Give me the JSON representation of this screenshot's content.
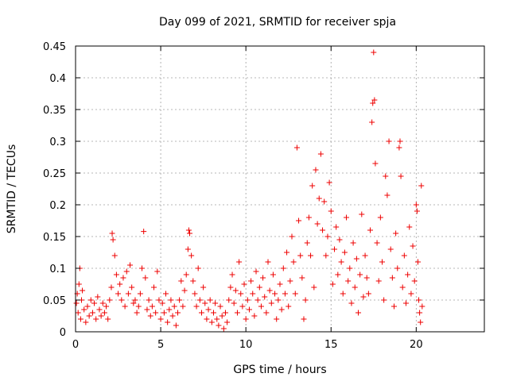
{
  "chart_data": {
    "type": "scatter",
    "title": "Day 099 of 2021, SRMTID for receiver spja",
    "xlabel": "GPS time / hours",
    "ylabel": "SRMTID / TECUs",
    "xlim": [
      0,
      24
    ],
    "ylim": [
      0,
      0.45
    ],
    "x_ticks": [
      0,
      5,
      10,
      15,
      20
    ],
    "y_ticks": [
      0,
      0.05,
      0.1,
      0.15,
      0.2,
      0.25,
      0.3,
      0.35,
      0.4,
      0.45
    ],
    "x_tick_labels": [
      "0",
      "5",
      "10",
      "15",
      "20"
    ],
    "y_tick_labels": [
      "0",
      "0.05",
      "0.1",
      "0.15",
      "0.2",
      "0.25",
      "0.3",
      "0.35",
      "0.4",
      "0.45"
    ],
    "grid": true,
    "marker": "+",
    "marker_color": "#ee0000",
    "series": [
      {
        "points": [
          [
            0.05,
            0.045
          ],
          [
            0.1,
            0.06
          ],
          [
            0.15,
            0.03
          ],
          [
            0.2,
            0.075
          ],
          [
            0.25,
            0.1
          ],
          [
            0.3,
            0.02
          ],
          [
            0.35,
            0.05
          ],
          [
            0.4,
            0.065
          ],
          [
            0.5,
            0.035
          ],
          [
            0.6,
            0.015
          ],
          [
            0.7,
            0.04
          ],
          [
            0.8,
            0.025
          ],
          [
            0.9,
            0.05
          ],
          [
            1.0,
            0.03
          ],
          [
            1.1,
            0.045
          ],
          [
            1.2,
            0.02
          ],
          [
            1.3,
            0.055
          ],
          [
            1.4,
            0.035
          ],
          [
            1.5,
            0.025
          ],
          [
            1.6,
            0.045
          ],
          [
            1.7,
            0.03
          ],
          [
            1.8,
            0.04
          ],
          [
            1.9,
            0.02
          ],
          [
            2.0,
            0.05
          ],
          [
            2.1,
            0.07
          ],
          [
            2.15,
            0.155
          ],
          [
            2.2,
            0.145
          ],
          [
            2.3,
            0.12
          ],
          [
            2.4,
            0.09
          ],
          [
            2.5,
            0.06
          ],
          [
            2.6,
            0.075
          ],
          [
            2.7,
            0.05
          ],
          [
            2.8,
            0.085
          ],
          [
            2.9,
            0.04
          ],
          [
            3.0,
            0.095
          ],
          [
            3.1,
            0.06
          ],
          [
            3.2,
            0.105
          ],
          [
            3.3,
            0.07
          ],
          [
            3.4,
            0.045
          ],
          [
            3.5,
            0.05
          ],
          [
            3.6,
            0.03
          ],
          [
            3.7,
            0.04
          ],
          [
            3.8,
            0.06
          ],
          [
            3.9,
            0.1
          ],
          [
            4.0,
            0.158
          ],
          [
            4.1,
            0.085
          ],
          [
            4.2,
            0.035
          ],
          [
            4.3,
            0.05
          ],
          [
            4.4,
            0.025
          ],
          [
            4.5,
            0.04
          ],
          [
            4.6,
            0.07
          ],
          [
            4.7,
            0.03
          ],
          [
            4.8,
            0.095
          ],
          [
            4.9,
            0.05
          ],
          [
            5.0,
            0.02
          ],
          [
            5.1,
            0.045
          ],
          [
            5.2,
            0.03
          ],
          [
            5.3,
            0.06
          ],
          [
            5.4,
            0.015
          ],
          [
            5.5,
            0.035
          ],
          [
            5.6,
            0.05
          ],
          [
            5.7,
            0.025
          ],
          [
            5.8,
            0.04
          ],
          [
            5.9,
            0.01
          ],
          [
            6.0,
            0.03
          ],
          [
            6.1,
            0.05
          ],
          [
            6.2,
            0.08
          ],
          [
            6.3,
            0.04
          ],
          [
            6.4,
            0.065
          ],
          [
            6.5,
            0.09
          ],
          [
            6.6,
            0.13
          ],
          [
            6.65,
            0.16
          ],
          [
            6.7,
            0.155
          ],
          [
            6.8,
            0.12
          ],
          [
            6.9,
            0.08
          ],
          [
            7.0,
            0.06
          ],
          [
            7.1,
            0.04
          ],
          [
            7.2,
            0.1
          ],
          [
            7.3,
            0.05
          ],
          [
            7.4,
            0.03
          ],
          [
            7.5,
            0.07
          ],
          [
            7.6,
            0.045
          ],
          [
            7.7,
            0.02
          ],
          [
            7.8,
            0.035
          ],
          [
            7.9,
            0.05
          ],
          [
            8.0,
            0.015
          ],
          [
            8.1,
            0.03
          ],
          [
            8.2,
            0.045
          ],
          [
            8.3,
            0.02
          ],
          [
            8.4,
            0.01
          ],
          [
            8.5,
            0.04
          ],
          [
            8.6,
            0.025
          ],
          [
            8.7,
            0.005
          ],
          [
            8.8,
            0.03
          ],
          [
            8.9,
            0.015
          ],
          [
            9.0,
            0.05
          ],
          [
            9.1,
            0.07
          ],
          [
            9.2,
            0.09
          ],
          [
            9.3,
            0.045
          ],
          [
            9.4,
            0.065
          ],
          [
            9.5,
            0.03
          ],
          [
            9.6,
            0.11
          ],
          [
            9.7,
            0.06
          ],
          [
            9.8,
            0.04
          ],
          [
            9.9,
            0.075
          ],
          [
            10.0,
            0.02
          ],
          [
            10.1,
            0.05
          ],
          [
            10.2,
            0.035
          ],
          [
            10.3,
            0.08
          ],
          [
            10.4,
            0.06
          ],
          [
            10.5,
            0.025
          ],
          [
            10.6,
            0.095
          ],
          [
            10.7,
            0.05
          ],
          [
            10.8,
            0.07
          ],
          [
            10.9,
            0.04
          ],
          [
            11.0,
            0.085
          ],
          [
            11.1,
            0.055
          ],
          [
            11.2,
            0.03
          ],
          [
            11.3,
            0.11
          ],
          [
            11.4,
            0.065
          ],
          [
            11.5,
            0.045
          ],
          [
            11.6,
            0.09
          ],
          [
            11.7,
            0.06
          ],
          [
            11.8,
            0.02
          ],
          [
            11.9,
            0.05
          ],
          [
            12.0,
            0.075
          ],
          [
            12.1,
            0.035
          ],
          [
            12.2,
            0.1
          ],
          [
            12.3,
            0.06
          ],
          [
            12.4,
            0.125
          ],
          [
            12.5,
            0.04
          ],
          [
            12.6,
            0.08
          ],
          [
            12.7,
            0.15
          ],
          [
            12.8,
            0.11
          ],
          [
            12.9,
            0.06
          ],
          [
            13.0,
            0.29
          ],
          [
            13.1,
            0.175
          ],
          [
            13.2,
            0.12
          ],
          [
            13.3,
            0.085
          ],
          [
            13.4,
            0.02
          ],
          [
            13.5,
            0.05
          ],
          [
            13.6,
            0.14
          ],
          [
            13.7,
            0.18
          ],
          [
            13.8,
            0.12
          ],
          [
            13.9,
            0.23
          ],
          [
            14.0,
            0.07
          ],
          [
            14.1,
            0.255
          ],
          [
            14.2,
            0.17
          ],
          [
            14.3,
            0.21
          ],
          [
            14.4,
            0.28
          ],
          [
            14.5,
            0.16
          ],
          [
            14.6,
            0.205
          ],
          [
            14.7,
            0.12
          ],
          [
            14.8,
            0.15
          ],
          [
            14.9,
            0.235
          ],
          [
            15.0,
            0.19
          ],
          [
            15.1,
            0.075
          ],
          [
            15.2,
            0.13
          ],
          [
            15.3,
            0.165
          ],
          [
            15.4,
            0.09
          ],
          [
            15.5,
            0.145
          ],
          [
            15.6,
            0.11
          ],
          [
            15.7,
            0.06
          ],
          [
            15.8,
            0.125
          ],
          [
            15.9,
            0.18
          ],
          [
            16.0,
            0.08
          ],
          [
            16.1,
            0.1
          ],
          [
            16.2,
            0.045
          ],
          [
            16.3,
            0.14
          ],
          [
            16.4,
            0.07
          ],
          [
            16.5,
            0.115
          ],
          [
            16.6,
            0.03
          ],
          [
            16.7,
            0.09
          ],
          [
            16.8,
            0.185
          ],
          [
            16.9,
            0.055
          ],
          [
            17.0,
            0.12
          ],
          [
            17.1,
            0.085
          ],
          [
            17.2,
            0.06
          ],
          [
            17.3,
            0.16
          ],
          [
            17.4,
            0.33
          ],
          [
            17.45,
            0.36
          ],
          [
            17.5,
            0.44
          ],
          [
            17.55,
            0.365
          ],
          [
            17.6,
            0.265
          ],
          [
            17.7,
            0.14
          ],
          [
            17.8,
            0.08
          ],
          [
            17.9,
            0.18
          ],
          [
            18.0,
            0.11
          ],
          [
            18.1,
            0.05
          ],
          [
            18.2,
            0.245
          ],
          [
            18.3,
            0.215
          ],
          [
            18.4,
            0.3
          ],
          [
            18.5,
            0.13
          ],
          [
            18.6,
            0.085
          ],
          [
            18.7,
            0.04
          ],
          [
            18.8,
            0.155
          ],
          [
            18.9,
            0.1
          ],
          [
            19.0,
            0.29
          ],
          [
            19.05,
            0.3
          ],
          [
            19.1,
            0.245
          ],
          [
            19.2,
            0.07
          ],
          [
            19.3,
            0.12
          ],
          [
            19.4,
            0.045
          ],
          [
            19.5,
            0.09
          ],
          [
            19.6,
            0.165
          ],
          [
            19.7,
            0.06
          ],
          [
            19.8,
            0.135
          ],
          [
            19.9,
            0.08
          ],
          [
            20.0,
            0.2
          ],
          [
            20.05,
            0.19
          ],
          [
            20.1,
            0.11
          ],
          [
            20.15,
            0.05
          ],
          [
            20.2,
            0.03
          ],
          [
            20.25,
            0.015
          ],
          [
            20.3,
            0.23
          ],
          [
            20.35,
            0.04
          ]
        ]
      }
    ]
  }
}
